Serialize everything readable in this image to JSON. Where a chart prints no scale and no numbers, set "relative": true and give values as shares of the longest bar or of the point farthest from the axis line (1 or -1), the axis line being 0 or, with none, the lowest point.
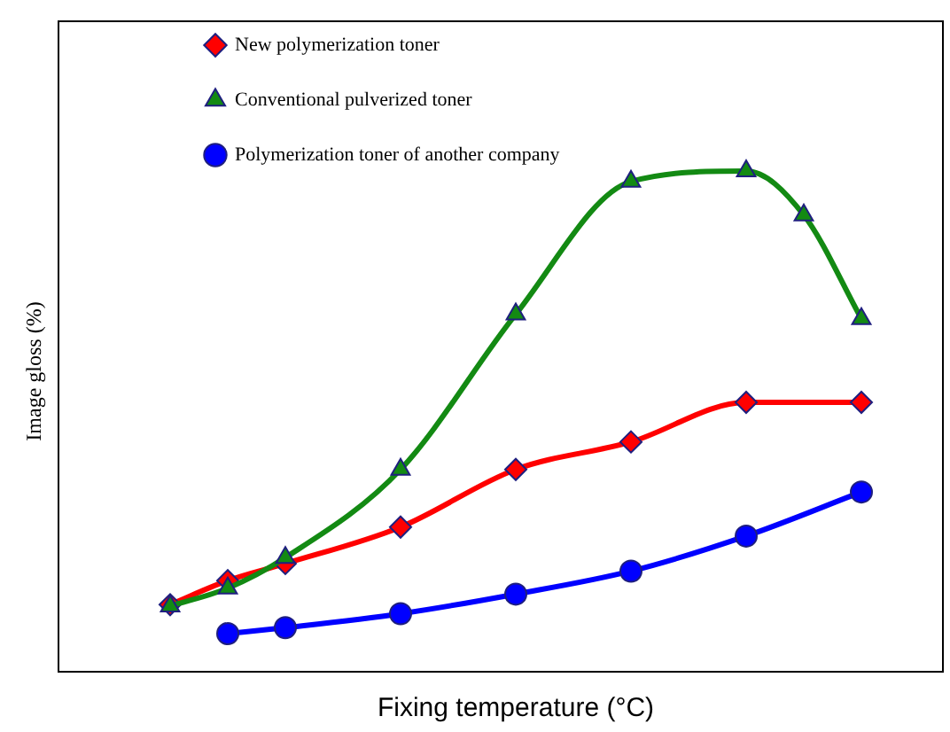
{
  "chart_data": {
    "type": "line",
    "relative": true,
    "xlabel": "Fixing temperature (°C)",
    "ylabel": "Image gloss (%)",
    "legend": "top left",
    "grid": false,
    "line_style": "solid",
    "categories": [
      null,
      null,
      null,
      null,
      null,
      null,
      null,
      null,
      null,
      null,
      null,
      null,
      null
    ],
    "series": [
      {
        "name": "New polymerization toner",
        "color": "#ff0000",
        "marker": "diamond",
        "values": [
          0.134,
          0.182,
          0.216,
          null,
          0.289,
          null,
          0.404,
          null,
          0.459,
          null,
          0.538,
          null,
          0.538
        ]
      },
      {
        "name": "Conventional pulverized toner",
        "color": "#138a13",
        "marker": "triangle",
        "values": [
          0.131,
          0.167,
          0.228,
          null,
          0.404,
          null,
          0.714,
          null,
          0.979,
          null,
          1,
          0.912,
          0.705
        ]
      },
      {
        "name": "Polymerization toner of another company",
        "color": "#0000ff",
        "marker": "circle",
        "values": [
          null,
          0.076,
          0.088,
          null,
          0.116,
          null,
          0.155,
          null,
          0.201,
          null,
          0.271,
          null,
          0.359
        ]
      }
    ]
  }
}
